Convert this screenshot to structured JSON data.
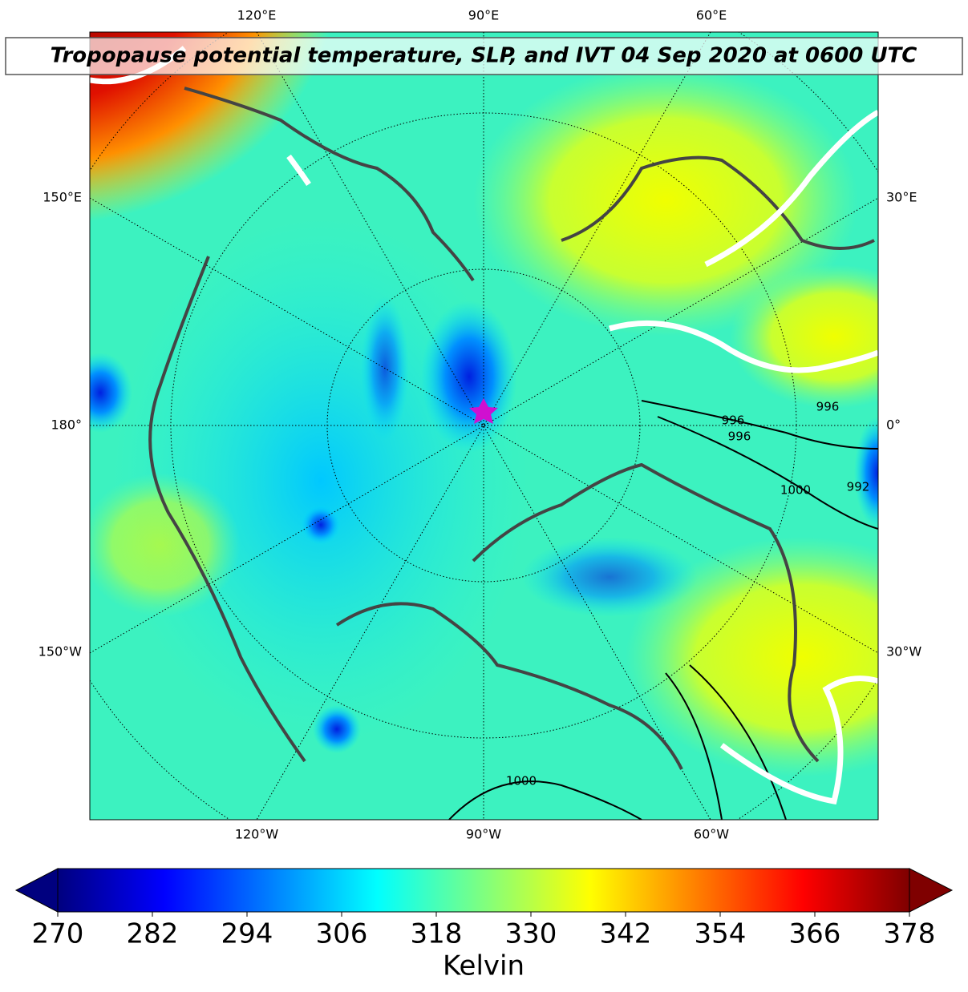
{
  "title": "Tropopause potential temperature, SLP, and IVT 04 Sep 2020 at 0600 UTC",
  "longitude_labels": {
    "top": [
      "120°E",
      "90°E",
      "60°E"
    ],
    "bottom": [
      "120°W",
      "90°W",
      "60°W"
    ],
    "left": [
      "150°E",
      "180°",
      "150°W"
    ],
    "right": [
      "30°E",
      "0°",
      "30°W"
    ]
  },
  "contour_labels": [
    "996",
    "996",
    "996",
    "1000",
    "992",
    "1000"
  ],
  "colorbar": {
    "label": "Kelvin",
    "colormap": "jet",
    "lim": [
      270,
      378
    ],
    "ticks": [
      270,
      282,
      294,
      306,
      318,
      330,
      342,
      354,
      366,
      378
    ]
  }
}
